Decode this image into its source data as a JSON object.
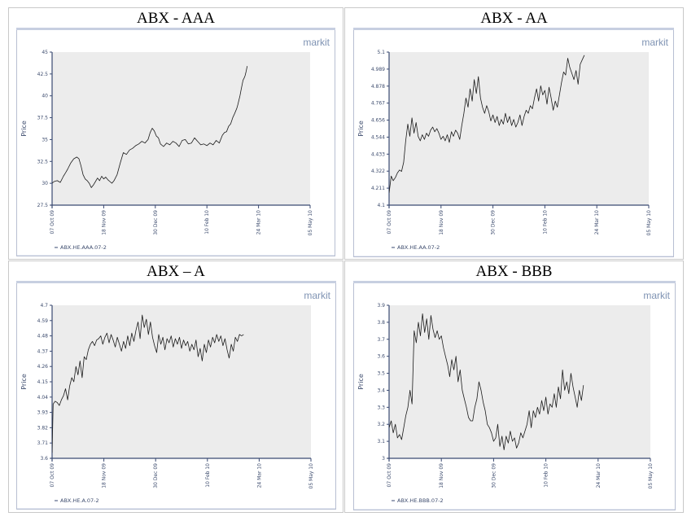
{
  "logo_text": "markit",
  "chart_data": [
    {
      "type": "line",
      "title": "ABX - AAA",
      "ylabel": "Price",
      "ylim": [
        27.5,
        45
      ],
      "yticks": [
        "27.5",
        "30",
        "32.5",
        "35",
        "37.5",
        "40",
        "42.5",
        "45"
      ],
      "xticks": [
        "07 Oct 09",
        "18 Nov 09",
        "30 Dec 09",
        "10 Feb 10",
        "24 Mar 10",
        "05 May 10"
      ],
      "grid": false,
      "legend": "bottom-left",
      "series": [
        {
          "name": "ABX.HE.AAA.07-2",
          "x": [
            0,
            2,
            5,
            8,
            11,
            13,
            15,
            18,
            21,
            24,
            26,
            28,
            30,
            32,
            34,
            36,
            38,
            40,
            42,
            44,
            46,
            48,
            50,
            52,
            54,
            56,
            58,
            60,
            63,
            66,
            69,
            72,
            75,
            78,
            81,
            84,
            87,
            90,
            93,
            95,
            97,
            99,
            101,
            103,
            105,
            108,
            111,
            114,
            117,
            120,
            123,
            126,
            129,
            132,
            135,
            138,
            141,
            144,
            147,
            150,
            153,
            156,
            159,
            162,
            165,
            167,
            169,
            171,
            173,
            175,
            177,
            179,
            180,
            181,
            182,
            183,
            184,
            185,
            186,
            187,
            188,
            189
          ],
          "values": [
            30.0,
            30.2,
            30.3,
            30.1,
            30.8,
            31.2,
            31.6,
            32.3,
            32.8,
            33.0,
            32.8,
            32.0,
            31.0,
            30.5,
            30.3,
            30.0,
            29.5,
            29.8,
            30.2,
            30.6,
            30.3,
            30.8,
            30.5,
            30.7,
            30.4,
            30.2,
            30.0,
            30.3,
            31.0,
            32.3,
            33.5,
            33.3,
            33.8,
            34.0,
            34.3,
            34.5,
            34.8,
            34.6,
            35.0,
            35.8,
            36.3,
            36.0,
            35.4,
            35.2,
            34.5,
            34.2,
            34.6,
            34.4,
            34.8,
            34.6,
            34.2,
            34.9,
            35.0,
            34.5,
            34.6,
            35.2,
            34.8,
            34.4,
            34.5,
            34.3,
            34.6,
            34.4,
            34.9,
            34.6,
            35.5,
            35.8,
            35.9,
            36.5,
            36.8,
            37.5,
            38.0,
            38.6,
            39.0,
            39.5,
            40.0,
            40.6,
            41.2,
            41.8,
            42.0,
            42.3,
            42.8,
            43.4
          ]
        }
      ]
    },
    {
      "type": "line",
      "title": "ABX - AA",
      "ylabel": "Price",
      "ylim": [
        4.1,
        5.1
      ],
      "yticks": [
        "4.1",
        "4.211",
        "4.322",
        "4.433",
        "4.544",
        "4.656",
        "4.767",
        "4.878",
        "4.989",
        "5.1"
      ],
      "xticks": [
        "07 Oct 09",
        "18 Nov 09",
        "30 Dec 09",
        "10 Feb 10",
        "24 Mar 10",
        "05 May 10"
      ],
      "grid": false,
      "legend": "bottom-left",
      "series": [
        {
          "name": "ABX.HE.AA.07-2",
          "x": [
            0,
            2,
            4,
            6,
            8,
            10,
            12,
            14,
            16,
            18,
            20,
            22,
            24,
            26,
            28,
            30,
            32,
            34,
            36,
            38,
            40,
            42,
            44,
            46,
            48,
            50,
            52,
            54,
            56,
            58,
            60,
            62,
            64,
            66,
            68,
            70,
            72,
            74,
            76,
            78,
            80,
            82,
            84,
            86,
            88,
            90,
            92,
            94,
            96,
            98,
            100,
            102,
            104,
            106,
            108,
            110,
            112,
            114,
            116,
            118,
            120,
            122,
            124,
            126,
            128,
            130,
            132,
            134,
            136,
            138,
            140,
            142,
            144,
            146,
            148,
            150,
            152,
            154,
            156,
            158,
            160,
            162,
            164,
            166,
            168,
            170,
            172,
            174,
            176,
            178,
            180,
            182,
            184,
            186,
            188
          ],
          "values": [
            4.18,
            4.29,
            4.26,
            4.28,
            4.31,
            4.33,
            4.32,
            4.38,
            4.52,
            4.63,
            4.55,
            4.67,
            4.57,
            4.64,
            4.55,
            4.52,
            4.56,
            4.53,
            4.57,
            4.55,
            4.59,
            4.61,
            4.58,
            4.6,
            4.57,
            4.53,
            4.55,
            4.52,
            4.56,
            4.51,
            4.58,
            4.55,
            4.59,
            4.57,
            4.53,
            4.62,
            4.7,
            4.8,
            4.74,
            4.86,
            4.78,
            4.92,
            4.83,
            4.94,
            4.8,
            4.74,
            4.7,
            4.75,
            4.71,
            4.65,
            4.69,
            4.64,
            4.68,
            4.62,
            4.66,
            4.63,
            4.7,
            4.64,
            4.68,
            4.62,
            4.66,
            4.61,
            4.64,
            4.69,
            4.62,
            4.68,
            4.72,
            4.7,
            4.75,
            4.73,
            4.8,
            4.86,
            4.78,
            4.88,
            4.82,
            4.85,
            4.76,
            4.87,
            4.8,
            4.72,
            4.78,
            4.74,
            4.82,
            4.9,
            4.97,
            4.95,
            5.06,
            5.0,
            4.96,
            4.92,
            4.98,
            4.89,
            5.02,
            5.05,
            5.08
          ]
        }
      ]
    },
    {
      "type": "line",
      "title": "ABX – A",
      "ylabel": "Price",
      "ylim": [
        3.6,
        4.7
      ],
      "yticks": [
        "3.6",
        "3.71",
        "3.82",
        "3.93",
        "4.04",
        "4.15",
        "4.26",
        "4.37",
        "4.48",
        "4.59",
        "4.7"
      ],
      "xticks": [
        "07 Oct 09",
        "18 Nov 09",
        "30 Dec 09",
        "10 Feb 10",
        "24 Mar 10",
        "05 May 10"
      ],
      "grid": false,
      "legend": "bottom-left",
      "series": [
        {
          "name": "ABX.HE.A.07-2",
          "x": [
            0,
            1,
            3,
            5,
            7,
            9,
            11,
            13,
            15,
            17,
            19,
            21,
            23,
            25,
            27,
            29,
            31,
            33,
            35,
            37,
            39,
            41,
            43,
            45,
            47,
            49,
            51,
            53,
            55,
            57,
            59,
            61,
            63,
            65,
            67,
            69,
            71,
            73,
            75,
            77,
            79,
            81,
            83,
            85,
            87,
            89,
            91,
            93,
            95,
            97,
            99,
            101,
            103,
            105,
            107,
            109,
            111,
            113,
            115,
            117,
            119,
            121,
            123,
            125,
            127,
            129,
            131,
            133,
            135,
            137,
            139,
            141,
            143,
            145,
            147,
            149,
            151,
            153,
            155,
            157,
            159,
            161,
            163,
            165,
            167,
            169,
            171,
            173,
            175,
            177,
            179,
            181,
            183,
            185
          ],
          "values": [
            3.64,
            3.99,
            4.01,
            4.0,
            3.98,
            4.02,
            4.05,
            4.1,
            4.02,
            4.12,
            4.18,
            4.15,
            4.26,
            4.2,
            4.3,
            4.18,
            4.33,
            4.31,
            4.38,
            4.42,
            4.44,
            4.41,
            4.45,
            4.46,
            4.48,
            4.42,
            4.47,
            4.5,
            4.43,
            4.49,
            4.45,
            4.4,
            4.47,
            4.42,
            4.37,
            4.44,
            4.39,
            4.48,
            4.41,
            4.5,
            4.44,
            4.52,
            4.58,
            4.46,
            4.63,
            4.54,
            4.6,
            4.49,
            4.58,
            4.47,
            4.41,
            4.36,
            4.49,
            4.42,
            4.47,
            4.38,
            4.46,
            4.43,
            4.48,
            4.4,
            4.46,
            4.42,
            4.47,
            4.39,
            4.45,
            4.41,
            4.44,
            4.37,
            4.42,
            4.38,
            4.45,
            4.33,
            4.39,
            4.3,
            4.42,
            4.36,
            4.45,
            4.4,
            4.47,
            4.43,
            4.49,
            4.44,
            4.48,
            4.41,
            4.46,
            4.38,
            4.32,
            4.42,
            4.37,
            4.47,
            4.44,
            4.49,
            4.48,
            4.49
          ]
        }
      ]
    },
    {
      "type": "line",
      "title": "ABX - BBB",
      "ylabel": "Price",
      "ylim": [
        3.0,
        3.9
      ],
      "yticks": [
        "3",
        "3.1",
        "3.2",
        "3.3",
        "3.4",
        "3.5",
        "3.6",
        "3.7",
        "3.8",
        "3.9"
      ],
      "xticks": [
        "07 Oct 09",
        "18 Nov 09",
        "30 Dec 09",
        "10 Feb 10",
        "24 Mar 10",
        "05 May 10"
      ],
      "grid": false,
      "legend": "bottom-left",
      "series": [
        {
          "name": "ABX.HE.BBB.07-2",
          "x": [
            0,
            2,
            4,
            6,
            8,
            10,
            12,
            14,
            16,
            18,
            20,
            22,
            24,
            26,
            28,
            30,
            32,
            34,
            36,
            38,
            40,
            42,
            44,
            46,
            48,
            50,
            52,
            54,
            56,
            58,
            60,
            62,
            64,
            66,
            68,
            70,
            72,
            74,
            76,
            78,
            80,
            82,
            84,
            86,
            88,
            90,
            92,
            94,
            96,
            98,
            100,
            102,
            104,
            106,
            108,
            110,
            112,
            114,
            116,
            118,
            120,
            122,
            124,
            126,
            128,
            130,
            132,
            134,
            136,
            138,
            140,
            142,
            144,
            146,
            148,
            150,
            152,
            154,
            156,
            158,
            160,
            162,
            164,
            166,
            168,
            170,
            172,
            174,
            176,
            178,
            180,
            182,
            184,
            186
          ],
          "values": [
            3.18,
            3.22,
            3.15,
            3.2,
            3.12,
            3.14,
            3.11,
            3.18,
            3.25,
            3.3,
            3.4,
            3.32,
            3.75,
            3.68,
            3.8,
            3.72,
            3.85,
            3.74,
            3.82,
            3.7,
            3.84,
            3.76,
            3.71,
            3.75,
            3.7,
            3.72,
            3.65,
            3.6,
            3.55,
            3.48,
            3.58,
            3.52,
            3.6,
            3.45,
            3.52,
            3.4,
            3.35,
            3.3,
            3.24,
            3.22,
            3.22,
            3.3,
            3.35,
            3.45,
            3.4,
            3.33,
            3.28,
            3.2,
            3.18,
            3.15,
            3.1,
            3.12,
            3.2,
            3.07,
            3.13,
            3.05,
            3.13,
            3.09,
            3.16,
            3.1,
            3.12,
            3.06,
            3.09,
            3.15,
            3.12,
            3.16,
            3.2,
            3.28,
            3.18,
            3.28,
            3.24,
            3.3,
            3.26,
            3.34,
            3.28,
            3.36,
            3.26,
            3.32,
            3.3,
            3.38,
            3.3,
            3.42,
            3.35,
            3.52,
            3.4,
            3.45,
            3.38,
            3.5,
            3.42,
            3.36,
            3.3,
            3.4,
            3.34,
            3.43
          ]
        }
      ]
    }
  ]
}
